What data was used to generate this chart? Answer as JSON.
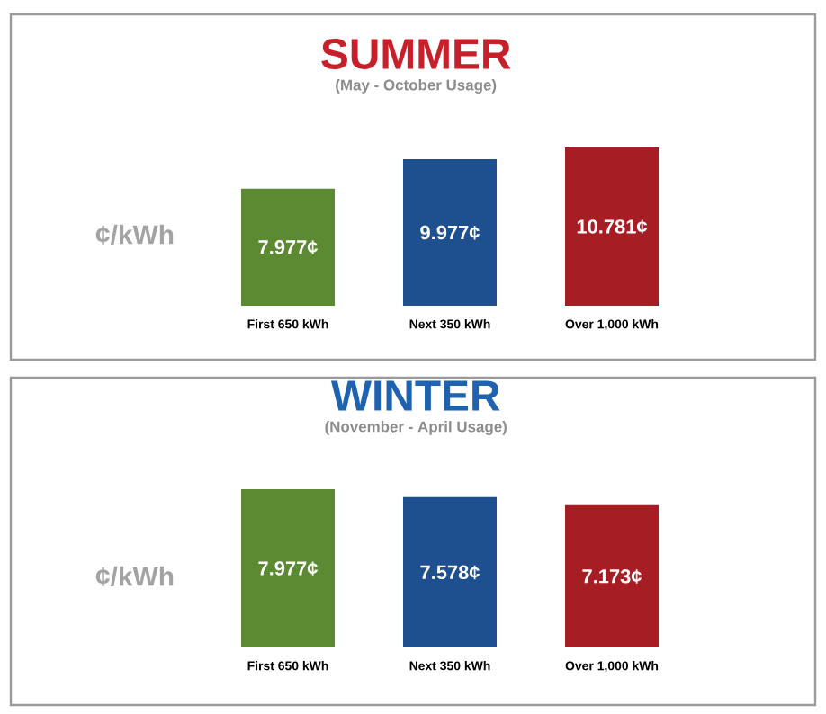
{
  "chart_data": [
    {
      "type": "bar",
      "title": "SUMMER",
      "subtitle": "(May - October Usage)",
      "ylabel": "¢/kWh",
      "categories": [
        "First 650 kWh",
        "Next 350 kWh",
        "Over 1,000 kWh"
      ],
      "values": [
        7.977,
        9.977,
        10.781
      ],
      "colors": [
        "#5b8a32",
        "#1e4f8e",
        "#a61e24"
      ],
      "value_labels": [
        "7.977¢",
        "9.977¢",
        "10.781¢"
      ]
    },
    {
      "type": "bar",
      "title": "WINTER",
      "subtitle": "(November - April Usage)",
      "ylabel": "¢/kWh",
      "categories": [
        "First 650 kWh",
        "Next 350 kWh",
        "Over 1,000 kWh"
      ],
      "values": [
        7.977,
        7.578,
        7.173
      ],
      "colors": [
        "#5b8a32",
        "#1e4f8e",
        "#a61e24"
      ],
      "value_labels": [
        "7.977¢",
        "7.578¢",
        "7.173¢"
      ]
    }
  ]
}
